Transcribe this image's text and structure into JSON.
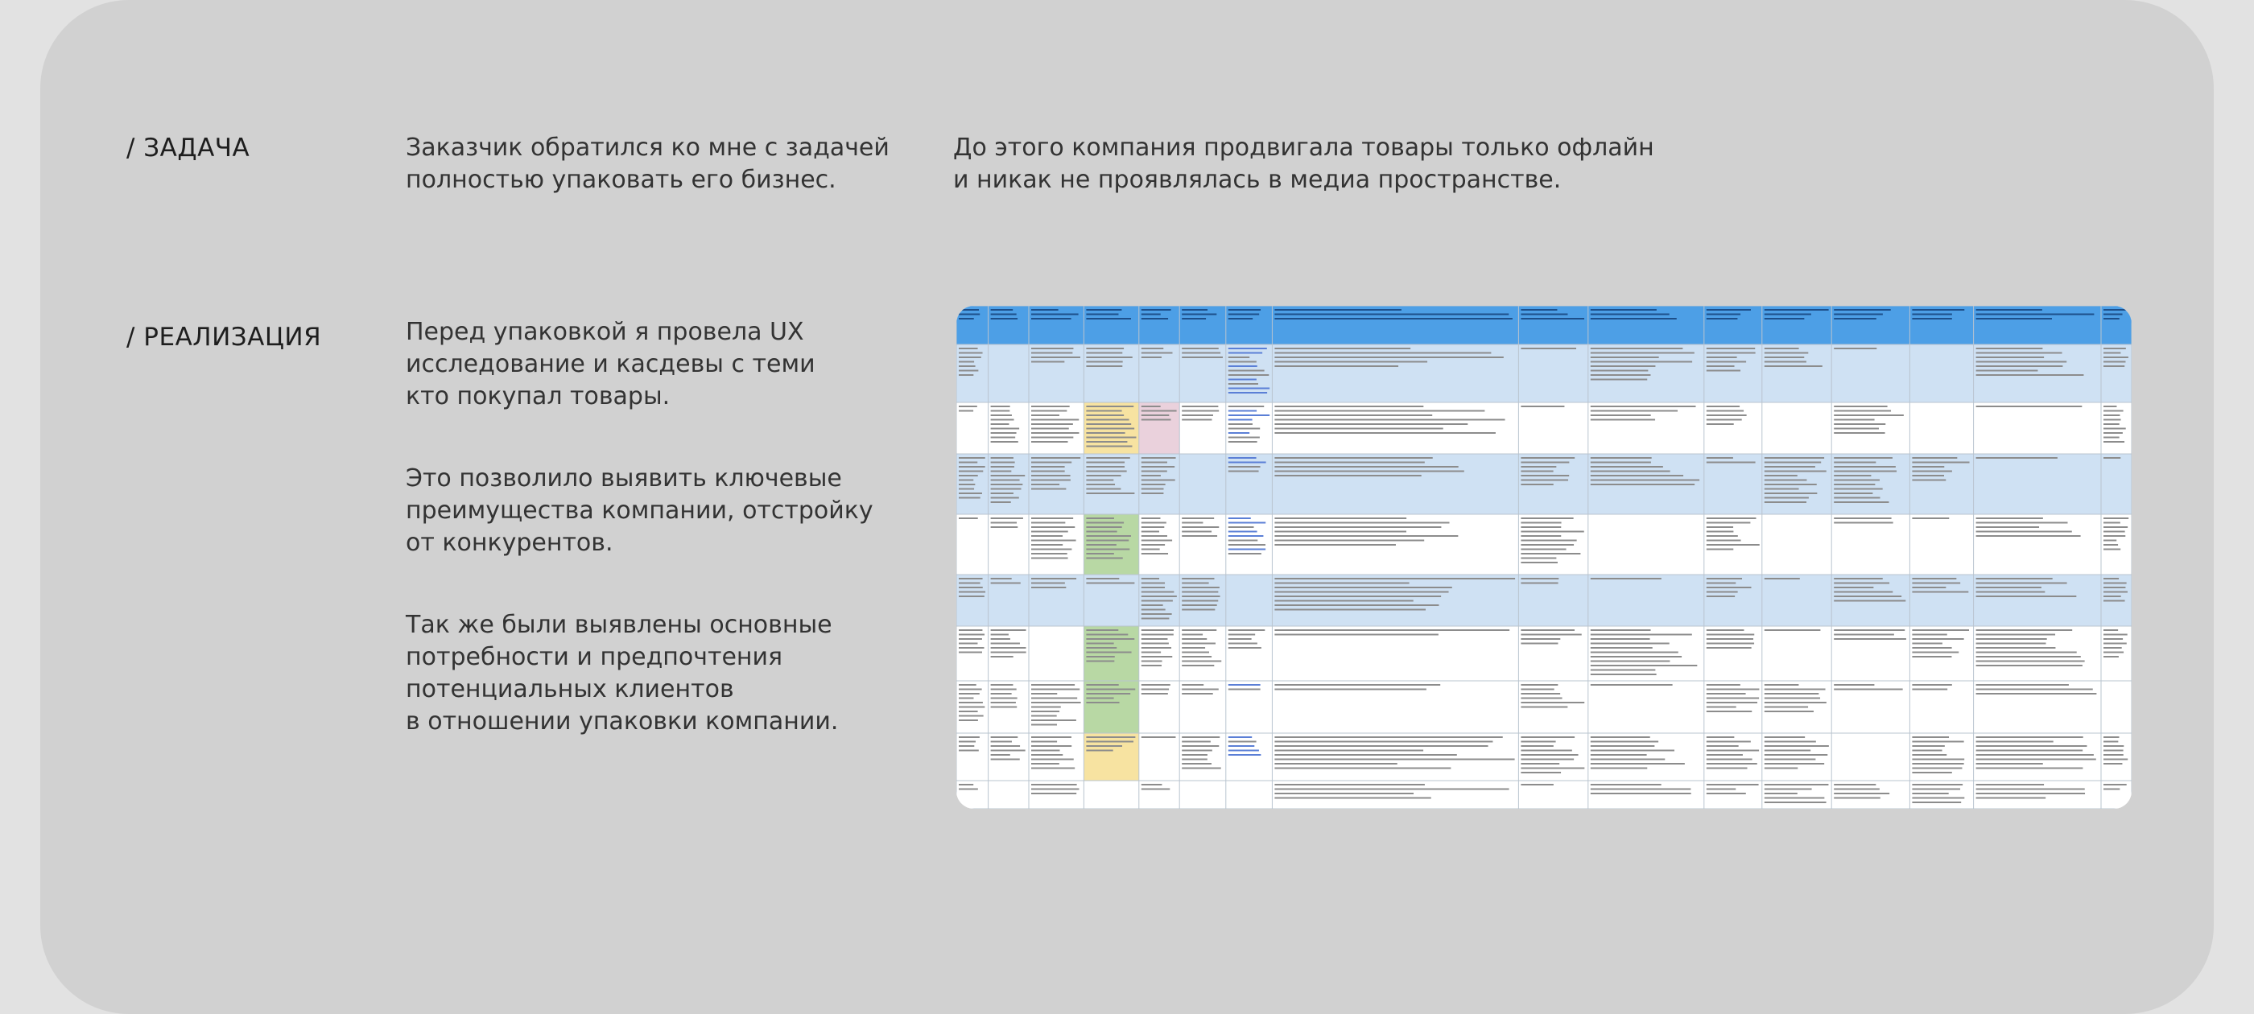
{
  "task": {
    "label": "/ ЗАДАЧА",
    "paragraphs": [
      [
        "Заказчик обратился ко мне с задачей",
        "полностью упаковать его бизнес."
      ],
      [
        "До этого компания продвигала товары только офлайн",
        "и никак не проявлялась в медиа пространстве."
      ]
    ]
  },
  "implementation": {
    "label": "/ РЕАЛИЗАЦИЯ",
    "paragraphs": [
      [
        "Перед упаковкой я провела UX",
        "исследование и касдевы с теми",
        "кто покупал товары."
      ],
      [
        "Это позволило выявить ключевые",
        "преимущества компании, отстройку",
        "от конкурентов."
      ],
      [
        "Так же были выявлены основные",
        "потребности и предпочтения",
        "потенциальных клиентов",
        "в отношении упаковки компании."
      ]
    ]
  }
}
